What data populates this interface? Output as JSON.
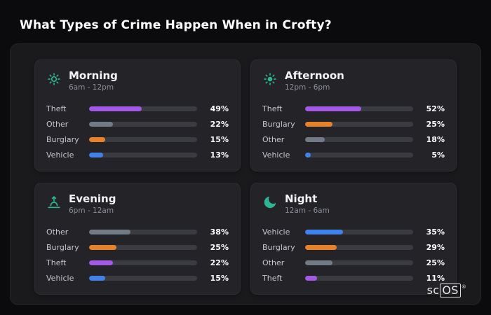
{
  "page": {
    "title": "What Types of Crime Happen When in Crofty?"
  },
  "logo": {
    "prefix": "sc",
    "boxed": "OS",
    "registered": "®"
  },
  "colors": {
    "page_background": "#0b0b0d",
    "panel_background": "#1a1a1d",
    "card_background": "#242428",
    "bar_track": "#3b3b42",
    "icon_accent": "#2fb593",
    "theft": "#a359e6",
    "other": "#727a85",
    "burglary": "#e8822a",
    "vehicle": "#3f82ec"
  },
  "chart_data": [
    {
      "type": "bar",
      "title": "Morning",
      "subtitle": "6am - 12pm",
      "icon": "morning-sun-icon",
      "categories": [
        "Theft",
        "Other",
        "Burglary",
        "Vehicle"
      ],
      "values": [
        49,
        22,
        15,
        13
      ],
      "unit": "%",
      "colors": [
        "#a359e6",
        "#727a85",
        "#e8822a",
        "#3f82ec"
      ],
      "xlim": [
        0,
        100
      ],
      "orientation": "horizontal",
      "grid": false,
      "legend": false
    },
    {
      "type": "bar",
      "title": "Afternoon",
      "subtitle": "12pm - 6pm",
      "icon": "afternoon-sun-icon",
      "categories": [
        "Theft",
        "Burglary",
        "Other",
        "Vehicle"
      ],
      "values": [
        52,
        25,
        18,
        5
      ],
      "unit": "%",
      "colors": [
        "#a359e6",
        "#e8822a",
        "#727a85",
        "#3f82ec"
      ],
      "xlim": [
        0,
        100
      ],
      "orientation": "horizontal",
      "grid": false,
      "legend": false
    },
    {
      "type": "bar",
      "title": "Evening",
      "subtitle": "6pm - 12am",
      "icon": "sunset-icon",
      "categories": [
        "Other",
        "Burglary",
        "Theft",
        "Vehicle"
      ],
      "values": [
        38,
        25,
        22,
        15
      ],
      "unit": "%",
      "colors": [
        "#727a85",
        "#e8822a",
        "#a359e6",
        "#3f82ec"
      ],
      "xlim": [
        0,
        100
      ],
      "orientation": "horizontal",
      "grid": false,
      "legend": false
    },
    {
      "type": "bar",
      "title": "Night",
      "subtitle": "12am - 6am",
      "icon": "moon-icon",
      "categories": [
        "Vehicle",
        "Burglary",
        "Other",
        "Theft"
      ],
      "values": [
        35,
        29,
        25,
        11
      ],
      "unit": "%",
      "colors": [
        "#3f82ec",
        "#e8822a",
        "#727a85",
        "#a359e6"
      ],
      "xlim": [
        0,
        100
      ],
      "orientation": "horizontal",
      "grid": false,
      "legend": false
    }
  ]
}
